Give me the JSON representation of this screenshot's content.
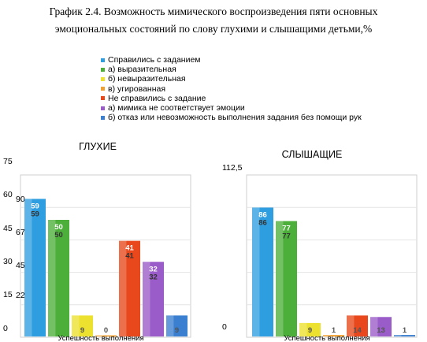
{
  "title": {
    "line1": "График 2.4. Возможность мимического воспроизведения пяти основных",
    "line2": "эмоциональных состояний по слову глухими и слышащими детьми,%"
  },
  "legend": [
    {
      "label": "Справились с заданием",
      "color": "#2f9ee0"
    },
    {
      "label": "а) выразительная",
      "color": "#4caf3a"
    },
    {
      "label": "б) невыразительная",
      "color": "#ece12e"
    },
    {
      "label": "в) угированная",
      "color": "#f0a030"
    },
    {
      "label": "Не справились с задание",
      "color": "#e8481c"
    },
    {
      "label": "а) мимика не соответствует  эмоции",
      "color": "#9a5cc8"
    },
    {
      "label": "б) отказ или невозможность выполнения задания без помощи рук",
      "color": "#3a7fd0"
    }
  ],
  "chart_data": [
    {
      "type": "bar",
      "title": "ГЛУХИЕ",
      "xlabel": "Успешность выполнения",
      "ylim": [
        0,
        75
      ],
      "yticks": [
        "75",
        "60",
        "45",
        "30",
        "15",
        "0"
      ],
      "yticks_secondary": [
        "90",
        "67,5",
        "45",
        "22,5"
      ],
      "values": [
        59,
        50,
        9,
        0,
        41,
        32,
        9
      ],
      "labels": [
        "59",
        "50",
        "9",
        "0",
        "41",
        "32",
        "9"
      ],
      "colors": [
        "#2f9ee0",
        "#4caf3a",
        "#ece12e",
        "#f0a030",
        "#e8481c",
        "#9a5cc8",
        "#3a7fd0"
      ]
    },
    {
      "type": "bar",
      "title": "СЛЫШАЩИЕ",
      "xlabel": "Успешность выполнения",
      "ylim": [
        0,
        112.5
      ],
      "yticks": [
        "112,5",
        "0"
      ],
      "values": [
        86,
        77,
        9,
        1,
        14,
        13,
        1
      ],
      "labels": [
        "86",
        "77",
        "9",
        "1",
        "14",
        "13",
        "1"
      ],
      "colors": [
        "#2f9ee0",
        "#4caf3a",
        "#ece12e",
        "#f0a030",
        "#e8481c",
        "#9a5cc8",
        "#3a7fd0"
      ]
    }
  ]
}
